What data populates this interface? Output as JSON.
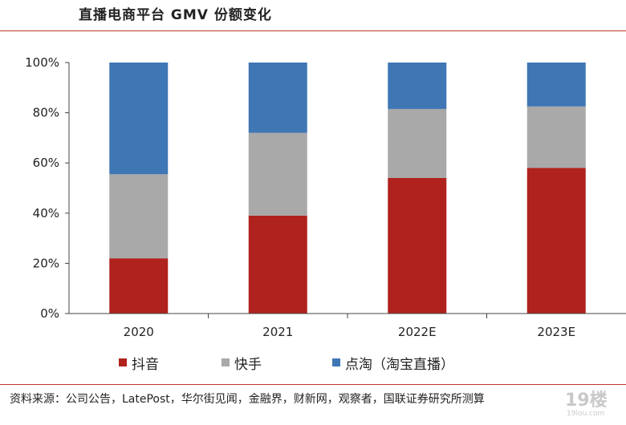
{
  "title": "直播电商平台 GMV 份额变化",
  "source_note": "资料来源：公司公告，LatePost，华尔街见闻，金融界，财新网，观察者，国联证券研究所测算",
  "watermark_text": "19楼",
  "watermark_sub": "19lou.com",
  "colors": {
    "douyin": "#b0221d",
    "kuaishou": "#a9a9a9",
    "diantao": "#3f76b4",
    "rule": "#c0392b",
    "axis": "#444444"
  },
  "chart_data": {
    "type": "bar",
    "stacked": true,
    "categories": [
      "2020",
      "2021",
      "2022E",
      "2023E"
    ],
    "series": [
      {
        "name": "抖音",
        "values": [
          22,
          39,
          54,
          58
        ]
      },
      {
        "name": "快手",
        "values": [
          33.5,
          33,
          27.5,
          24.5
        ]
      },
      {
        "name": "点淘（淘宝直播）",
        "values": [
          44.5,
          28,
          18.5,
          17.5
        ]
      }
    ],
    "ylim": [
      0,
      100
    ],
    "yticks": [
      "0%",
      "20%",
      "40%",
      "60%",
      "80%",
      "100%"
    ],
    "ytick_values": [
      0,
      20,
      40,
      60,
      80,
      100
    ],
    "grid": false,
    "legend_position": "bottom"
  }
}
